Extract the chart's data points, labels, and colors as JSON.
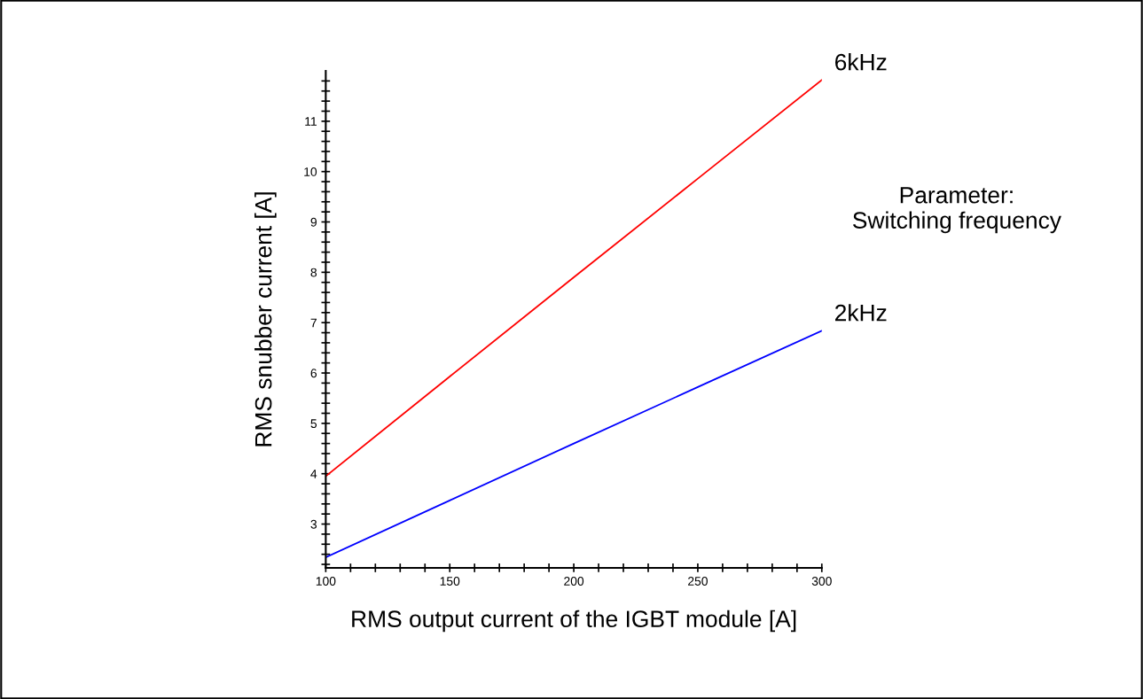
{
  "chart_data": {
    "type": "line",
    "xlabel": "RMS output current of the IGBT module [A]",
    "ylabel": "RMS snubber current [A]",
    "x": [
      100,
      150,
      200,
      250,
      300
    ],
    "series": [
      {
        "name": "6kHz",
        "color": "#ff0000",
        "values": [
          3.95,
          5.93,
          7.9,
          9.86,
          11.82
        ]
      },
      {
        "name": "2kHz",
        "color": "#0000ff",
        "values": [
          2.34,
          3.47,
          4.6,
          5.72,
          6.84
        ]
      }
    ],
    "annotations": [
      "Parameter:\nSwitching frequency"
    ],
    "xlim": [
      100,
      300
    ],
    "ylim": [
      2.13,
      12.0
    ],
    "xticks": [
      100,
      {
        "value": 110,
        "label": null
      },
      {
        "value": 120,
        "label": null
      },
      {
        "value": 130,
        "label": null
      },
      {
        "value": 140,
        "label": null
      },
      150,
      {
        "value": 160,
        "label": null
      },
      {
        "value": 170,
        "label": null
      },
      {
        "value": 180,
        "label": null
      },
      {
        "value": 190,
        "label": null
      },
      200,
      {
        "value": 210,
        "label": null
      },
      {
        "value": 220,
        "label": null
      },
      {
        "value": 230,
        "label": null
      },
      {
        "value": 240,
        "label": null
      },
      250,
      {
        "value": 260,
        "label": null
      },
      {
        "value": 270,
        "label": null
      },
      {
        "value": 280,
        "label": null
      },
      {
        "value": 290,
        "label": null
      },
      300
    ],
    "yticks": [
      {
        "value": 2.2,
        "label": null
      },
      {
        "value": 2.4,
        "label": null
      },
      {
        "value": 2.6,
        "label": null
      },
      {
        "value": 2.8,
        "label": null
      },
      3,
      {
        "value": 3.2,
        "label": null
      },
      {
        "value": 3.4,
        "label": null
      },
      {
        "value": 3.6,
        "label": null
      },
      {
        "value": 3.8,
        "label": null
      },
      4,
      {
        "value": 4.2,
        "label": null
      },
      {
        "value": 4.4,
        "label": null
      },
      {
        "value": 4.6,
        "label": null
      },
      {
        "value": 4.8,
        "label": null
      },
      5,
      {
        "value": 5.2,
        "label": null
      },
      {
        "value": 5.4,
        "label": null
      },
      {
        "value": 5.6,
        "label": null
      },
      {
        "value": 5.8,
        "label": null
      },
      6,
      {
        "value": 6.2,
        "label": null
      },
      {
        "value": 6.4,
        "label": null
      },
      {
        "value": 6.6,
        "label": null
      },
      {
        "value": 6.8,
        "label": null
      },
      7,
      {
        "value": 7.2,
        "label": null
      },
      {
        "value": 7.4,
        "label": null
      },
      {
        "value": 7.6,
        "label": null
      },
      {
        "value": 7.8,
        "label": null
      },
      8,
      {
        "value": 8.2,
        "label": null
      },
      {
        "value": 8.4,
        "label": null
      },
      {
        "value": 8.6,
        "label": null
      },
      {
        "value": 8.8,
        "label": null
      },
      9,
      {
        "value": 9.2,
        "label": null
      },
      {
        "value": 9.4,
        "label": null
      },
      {
        "value": 9.6,
        "label": null
      },
      {
        "value": 9.8,
        "label": null
      },
      10,
      {
        "value": 10.2,
        "label": null
      },
      {
        "value": 10.4,
        "label": null
      },
      {
        "value": 10.6,
        "label": null
      },
      {
        "value": 10.8,
        "label": null
      },
      11,
      {
        "value": 11.2,
        "label": null
      },
      {
        "value": 11.4,
        "label": null
      },
      {
        "value": 11.6,
        "label": null
      },
      {
        "value": 11.8,
        "label": null
      }
    ],
    "grid": false,
    "marker": "none",
    "line_style": "solid"
  }
}
